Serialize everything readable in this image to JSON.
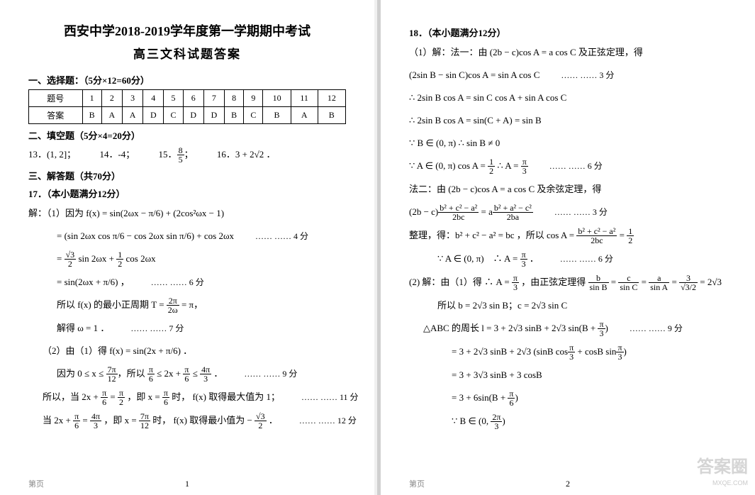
{
  "title_main": "西安中学2018-2019学年度第一学期期中考试",
  "title_sub": "高三文科试题答案",
  "section1": {
    "header": "一、选择题：（5分×12=60分）",
    "table": {
      "row1_label": "题号",
      "row2_label": "答案",
      "cols": [
        "1",
        "2",
        "3",
        "4",
        "5",
        "6",
        "7",
        "8",
        "9",
        "10",
        "11",
        "12"
      ],
      "answers": [
        "B",
        "A",
        "A",
        "D",
        "C",
        "D",
        "D",
        "B",
        "C",
        "B",
        "A",
        "B"
      ]
    }
  },
  "section2": {
    "header": "二、填空题（5分×4=20分）",
    "items": {
      "q13_label": "13．",
      "q13_val": "(1, 2]；",
      "q14_label": "14．",
      "q14_val": "-4；",
      "q15_label": "15．",
      "q15_num": "8",
      "q15_den": "5",
      "q15_suffix": "；",
      "q16_label": "16．",
      "q16_val": "3 + 2√2 ．"
    }
  },
  "section3": {
    "header": "三、解答题（共70分）",
    "q17_header": "17．（本小题满分12分）"
  },
  "q17": {
    "l1": "解：（1）因为 f(x) = sin(2ωx − π/6) + (2cos²ωx − 1)",
    "l2": "= (sin 2ωx cos π/6 − cos 2ωx sin π/6) + cos 2ωx",
    "l2_score": "…… …… 4 分",
    "l3_a": "= ",
    "l3_b": " sin 2ωx + ",
    "l3_c": " cos 2ωx",
    "l4": "= sin(2ωx + π/6) ，",
    "l4_score": "…… …… 6 分",
    "l5_a": "所以 f(x) 的最小正周期 T = ",
    "l5_b": " = π，",
    "l6": "解得 ω = 1 ．",
    "l6_score": "…… …… 7 分",
    "l7": "（2）由（1）得  f(x) = sin(2x + π/6) ．",
    "l8_a": "因为 0 ≤ x ≤ ",
    "l8_b": "，所以 ",
    "l8_c": " ≤ 2x + ",
    "l8_d": " ≤ ",
    "l8_e": " ．",
    "l8_score": "…… …… 9 分",
    "l9_a": "所以，当 2x + ",
    "l9_b": " = ",
    "l9_c": " ，即 x = ",
    "l9_d": " 时， f(x) 取得最大值为 1；",
    "l9_score": "…… …… 11 分",
    "l10_a": "当 2x + ",
    "l10_b": " = ",
    "l10_c": " ，即 x = ",
    "l10_d": " 时， f(x) 取得最小值为 − ",
    "l10_e": " ．",
    "l10_score": "…… …… 12 分"
  },
  "q18": {
    "header": "18．（本小题满分12分）",
    "l1": "（1）解：法一：由 (2b − c)cos A = a cos C 及正弦定理，得",
    "l2": "(2sin B − sin C)cos A = sin A cos C",
    "l2_score": "…… …… 3 分",
    "l3": "∴ 2sin B cos A = sin C cos A + sin A cos C",
    "l4": "∴ 2sin B cos A = sin(C + A) = sin B",
    "l5": "∵ B ∈ (0, π)  ∴ sin B ≠ 0",
    "l6_a": "∵ A ∈ (0, π) cos A = ",
    "l6_b": " ∴ A = ",
    "l6_score": "…… …… 6 分",
    "l7": "法二：由 (2b − c)cos A = a cos C 及余弦定理，得",
    "l8_a": "(2b − c)",
    "l8_b": " = a",
    "l8_score": "…… …… 3 分",
    "l9_a": "整理，得：b² + c² − a² = bc ，所以 cos A = ",
    "l9_b": " = ",
    "l10_a": "∵ A ∈ (0, π)　∴ A = ",
    "l10_b": " ．",
    "l10_score": "…… …… 6 分",
    "l11_a": "(2) 解：由（1）得 ∴ A = ",
    "l11_b": " ，由正弦定理得 ",
    "l11_c": " = ",
    "l11_d": " = ",
    "l11_e": " = ",
    "l11_f": " = 2√3",
    "l12": "所以 b = 2√3 sin B；c = 2√3 sin C",
    "l13_a": "△ABC 的周长 l = 3 + 2√3 sinB + 2√3 sin(B + ",
    "l13_b": ")",
    "l13_score": "…… …… 9 分",
    "l14_a": "= 3 + 2√3 sinB + 2√3 (sinB cos",
    "l14_b": " + cosB sin",
    "l14_c": ")",
    "l15": "= 3 + 3√3 sinB + 3 cosB",
    "l16_a": "= 3 + 6sin(B + ",
    "l16_b": ")",
    "l17_a": "∵ B ∈ (0, ",
    "l17_b": ")"
  },
  "fracs": {
    "pi6_n": "π",
    "pi6_d": "6",
    "pi3_n": "π",
    "pi3_d": "3",
    "pi2_n": "π",
    "pi2_d": "2",
    "half_n": "1",
    "half_d": "2",
    "r3_2_n": "√3",
    "r3_2_d": "2",
    "tp2w_n": "2π",
    "tp2w_d": "2ω",
    "sp12_n": "7π",
    "sp12_d": "12",
    "fp3_n": "4π",
    "fp3_d": "3",
    "tp3_n": "2π",
    "tp3_d": "3",
    "bca_n": "b² + c² − a²",
    "bca_d": "2bc",
    "bac_n": "b² + a² − c²",
    "bac_d": "2ba",
    "b_sb_n": "b",
    "b_sb_d": "sin B",
    "c_sc_n": "c",
    "c_sc_d": "sin C",
    "a_sa_n": "a",
    "a_sa_d": "sin A",
    "t_r_n": "3",
    "t_r_d": "√3/2"
  },
  "page_label": "第页",
  "page1_num": "1",
  "page2_num": "2",
  "watermark": "答案圈",
  "watermark_url": "MXQE.COM"
}
